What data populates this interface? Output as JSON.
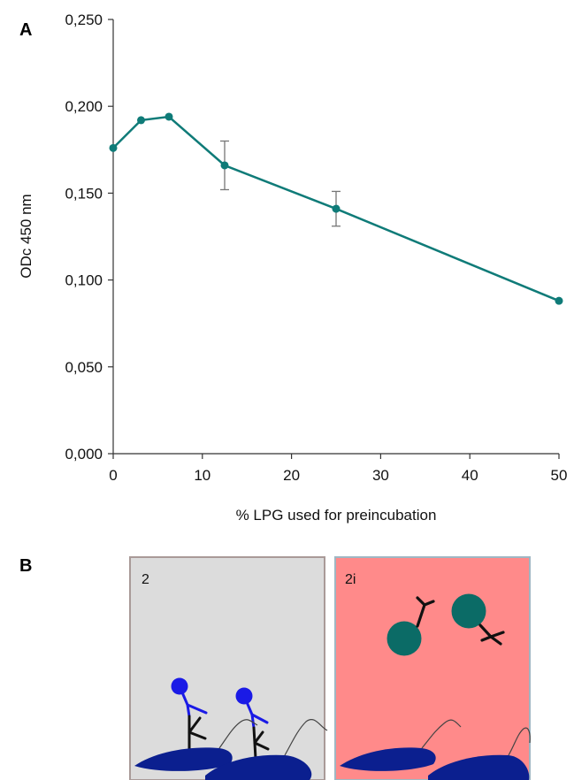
{
  "panel_a": {
    "letter": "A"
  },
  "panel_b": {
    "letter": "B",
    "left_box": {
      "label": "2",
      "fill": "#dcdcdc",
      "border": "#a99a98"
    },
    "right_box": {
      "label": "2i",
      "fill": "#ff8a8a",
      "border": "#9fb7c3"
    },
    "icons": [
      "parasite-icon",
      "anti-lpg-antibody-icon",
      "lpg-molecule-icon",
      "lpg-bead-icon"
    ]
  },
  "chart_data": {
    "type": "line",
    "title": "",
    "xlabel": "% LPG used for preincubation",
    "ylabel": "ODc 450 nm",
    "xlim": [
      0,
      50
    ],
    "ylim": [
      0,
      0.25
    ],
    "x_ticks": [
      0,
      10,
      20,
      30,
      40,
      50
    ],
    "x_tick_labels": [
      "0",
      "10",
      "20",
      "30",
      "40",
      "50"
    ],
    "y_ticks": [
      0,
      0.05,
      0.1,
      0.15,
      0.2,
      0.25
    ],
    "y_tick_labels": [
      "0,000",
      "0,050",
      "0,100",
      "0,150",
      "0,200",
      "0,250"
    ],
    "grid": false,
    "legend": "none",
    "series": [
      {
        "color": "#0f7b78",
        "points": [
          {
            "x": 0,
            "y": 0.176
          },
          {
            "x": 3.125,
            "y": 0.192
          },
          {
            "x": 6.25,
            "y": 0.194
          },
          {
            "x": 12.5,
            "y": 0.166,
            "err": 0.014
          },
          {
            "x": 25,
            "y": 0.141,
            "err": 0.01
          },
          {
            "x": 50,
            "y": 0.088
          }
        ]
      }
    ]
  }
}
